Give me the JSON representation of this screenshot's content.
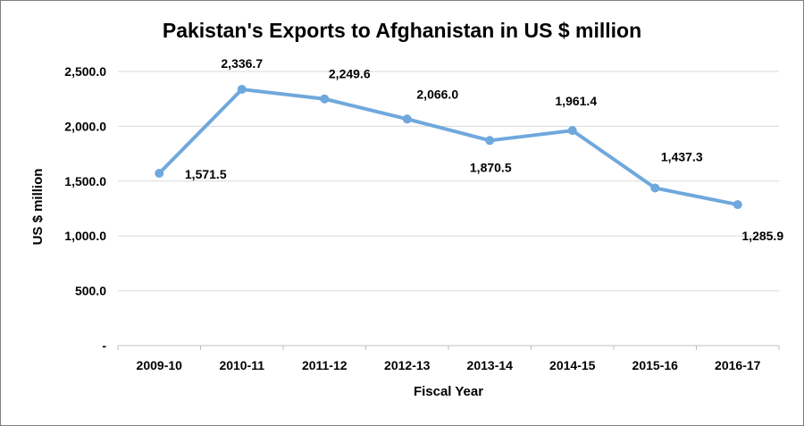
{
  "chart_data": {
    "type": "line",
    "title": "Pakistan's Exports to Afghanistan in US $ million",
    "xlabel": "Fiscal Year",
    "ylabel": "US $ million",
    "categories": [
      "2009-10",
      "2010-11",
      "2011-12",
      "2012-13",
      "2013-14",
      "2014-15",
      "2015-16",
      "2016-17"
    ],
    "series": [
      {
        "values": [
          1571.5,
          2336.7,
          2249.6,
          2066.0,
          1870.5,
          1961.4,
          1437.3,
          1285.9
        ],
        "data_labels": [
          "1,571.5",
          "2,336.7",
          "2,249.6",
          "2,066.0",
          "1,870.5",
          "1,961.4",
          "1,437.3",
          "1,285.9"
        ],
        "color": "#6fa8dc"
      }
    ],
    "ylim": [
      0,
      2500
    ],
    "y_ticks": [
      0,
      500,
      1000,
      1500,
      2000,
      2500
    ],
    "y_tick_labels": [
      "-",
      "500.0",
      "1,000.0",
      "1,500.0",
      "2,000.0",
      "2,500.0"
    ],
    "grid": true,
    "gridline_color": "#d9d9d9",
    "legend": "none"
  }
}
